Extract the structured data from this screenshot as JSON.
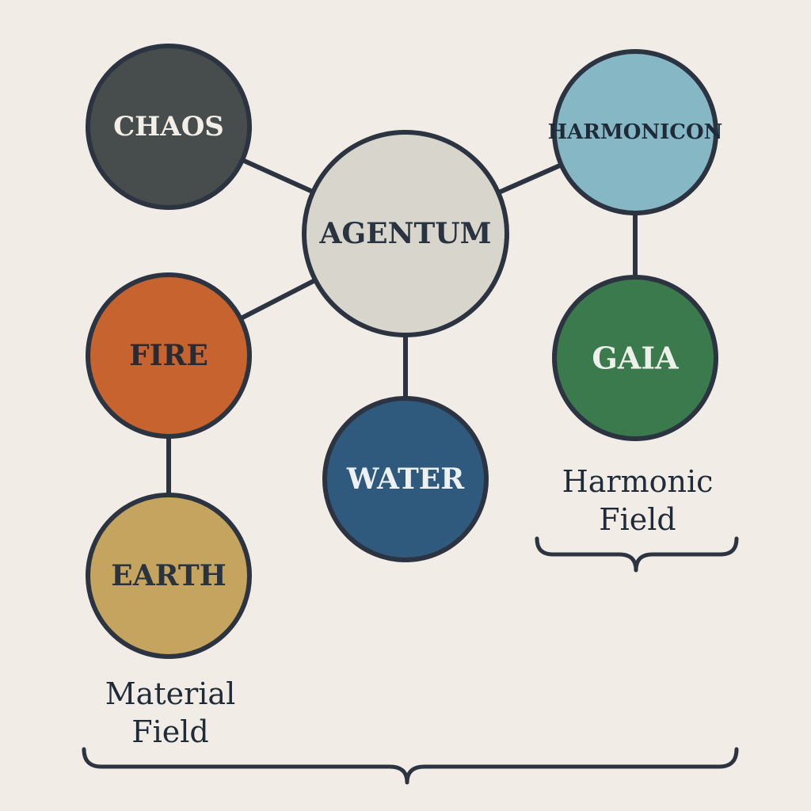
{
  "colors": {
    "background": "#f1ede6",
    "stroke": "#2b3440"
  },
  "nodes": {
    "chaos": {
      "label": "CHAOS",
      "fill": "#474d4c",
      "text_color": "#f2efe8"
    },
    "agentum": {
      "label": "AGENTUM",
      "fill": "#d8d6cc",
      "text_color": "#2a3340"
    },
    "harmonicon": {
      "label": "HARMONICON",
      "fill": "#86b7c5",
      "text_color": "#1f2b38"
    },
    "fire": {
      "label": "FIRE",
      "fill": "#c7632f",
      "text_color": "#2a2a33"
    },
    "gaia": {
      "label": "GAIA",
      "fill": "#3b7a4d",
      "text_color": "#eef0ea"
    },
    "water": {
      "label": "WATER",
      "fill": "#2f5a7d",
      "text_color": "#eef1f3"
    },
    "earth": {
      "label": "EARTH",
      "fill": "#c4a45e",
      "text_color": "#2a3340"
    }
  },
  "edges": [
    [
      "chaos",
      "agentum"
    ],
    [
      "agentum",
      "harmonicon"
    ],
    [
      "agentum",
      "fire"
    ],
    [
      "agentum",
      "water"
    ],
    [
      "harmonicon",
      "gaia"
    ],
    [
      "fire",
      "earth"
    ]
  ],
  "fields": {
    "harmonic": {
      "line1": "Harmonic",
      "line2": "Field"
    },
    "material": {
      "line1": "Material",
      "line2": "Field"
    }
  }
}
